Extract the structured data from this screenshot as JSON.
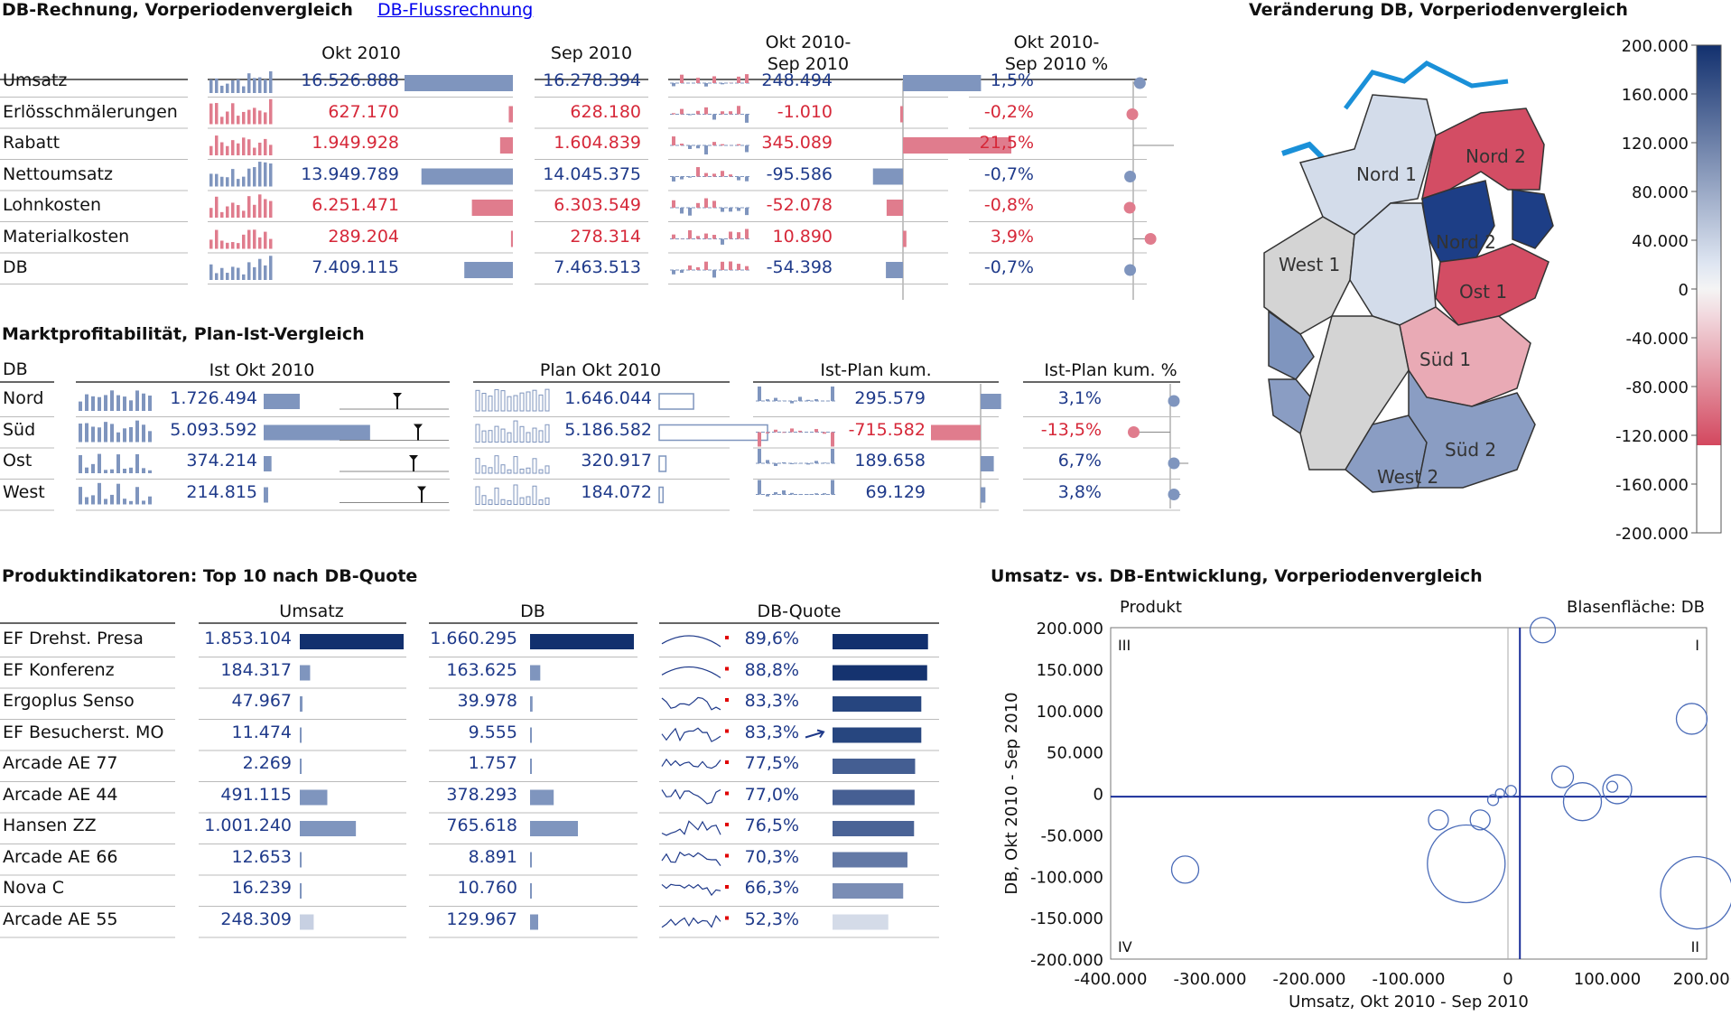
{
  "colors": {
    "blue": "#7f95be",
    "red": "#e07c8d",
    "navy": "#12306e",
    "textblue": "#1f3a8a",
    "textred": "#d62839",
    "map_pos": "#1c3f85",
    "map_neg": "#d13f58"
  },
  "db_rechnung": {
    "title": "DB-Rechnung, Vorperiodenvergleich",
    "link": "DB-Flussrechnung",
    "col_okt": "Okt 2010",
    "col_sep": "Sep 2010",
    "col_diff_1": "Okt 2010-",
    "col_diff_2": "Sep 2010",
    "col_pct_1": "Okt 2010-",
    "col_pct_2": "Sep 2010 %",
    "rows": [
      {
        "label": "Umsatz",
        "okt": "16.526.888",
        "sep": "16.278.394",
        "diff": "248.494",
        "pct": "1,5%",
        "neg": false,
        "okt_v": 16526888,
        "diff_v": 248494,
        "pct_v": 1.5
      },
      {
        "label": "Erlösschmälerungen",
        "okt": "627.170",
        "sep": "628.180",
        "diff": "-1.010",
        "pct": "-0,2%",
        "neg": true,
        "okt_v": 627170,
        "diff_v": -1010,
        "pct_v": -0.2
      },
      {
        "label": "Rabatt",
        "okt": "1.949.928",
        "sep": "1.604.839",
        "diff": "345.089",
        "pct": "21,5%",
        "neg": true,
        "okt_v": 1949928,
        "diff_v": 345089,
        "pct_v": 21.5
      },
      {
        "label": "Nettoumsatz",
        "okt": "13.949.789",
        "sep": "14.045.375",
        "diff": "-95.586",
        "pct": "-0,7%",
        "neg": false,
        "okt_v": 13949789,
        "diff_v": -95586,
        "pct_v": -0.7
      },
      {
        "label": "Lohnkosten",
        "okt": "6.251.471",
        "sep": "6.303.549",
        "diff": "-52.078",
        "pct": "-0,8%",
        "neg": true,
        "okt_v": 6251471,
        "diff_v": -52078,
        "pct_v": -0.8
      },
      {
        "label": "Materialkosten",
        "okt": "289.204",
        "sep": "278.314",
        "diff": "10.890",
        "pct": "3,9%",
        "neg": true,
        "okt_v": 289204,
        "diff_v": 10890,
        "pct_v": 3.9
      },
      {
        "label": "DB",
        "okt": "7.409.115",
        "sep": "7.463.513",
        "diff": "-54.398",
        "pct": "-0,7%",
        "neg": false,
        "okt_v": 7409115,
        "diff_v": -54398,
        "pct_v": -0.7
      }
    ]
  },
  "markt": {
    "title": "Marktprofitabilität, Plan-Ist-Vergleich",
    "col_db": "DB",
    "col_ist": "Ist Okt 2010",
    "col_plan": "Plan Okt 2010",
    "col_diff": "Ist-Plan kum.",
    "col_pct": "Ist-Plan kum. %",
    "rows": [
      {
        "label": "Nord",
        "ist": "1.726.494",
        "plan": "1.646.044",
        "diff": "295.579",
        "pct": "3,1%",
        "ist_v": 1726494,
        "plan_v": 1646044,
        "diff_v": 295579,
        "pct_v": 3.1
      },
      {
        "label": "Süd",
        "ist": "5.093.592",
        "plan": "5.186.582",
        "diff": "-715.582",
        "pct": "-13,5%",
        "ist_v": 5093592,
        "plan_v": 5186582,
        "diff_v": -715582,
        "pct_v": -13.5
      },
      {
        "label": "Ost",
        "ist": "374.214",
        "plan": "320.917",
        "diff": "189.658",
        "pct": "6,7%",
        "ist_v": 374214,
        "plan_v": 320917,
        "diff_v": 189658,
        "pct_v": 6.7
      },
      {
        "label": "West",
        "ist": "214.815",
        "plan": "184.072",
        "diff": "69.129",
        "pct": "3,8%",
        "ist_v": 214815,
        "plan_v": 184072,
        "diff_v": 69129,
        "pct_v": 3.8
      }
    ]
  },
  "produkt": {
    "title": "Produktindikatoren: Top 10 nach DB-Quote",
    "col_umsatz": "Umsatz",
    "col_db": "DB",
    "col_quote": "DB-Quote",
    "rows": [
      {
        "label": "EF Drehst. Presa",
        "umsatz": "1.853.104",
        "db": "1.660.295",
        "quote": "89,6%",
        "u_v": 1853104,
        "d_v": 1660295,
        "q_v": 89.6
      },
      {
        "label": "EF Konferenz",
        "umsatz": "184.317",
        "db": "163.625",
        "quote": "88,8%",
        "u_v": 184317,
        "d_v": 163625,
        "q_v": 88.8
      },
      {
        "label": "Ergoplus Senso",
        "umsatz": "47.967",
        "db": "39.978",
        "quote": "83,3%",
        "u_v": 47967,
        "d_v": 39978,
        "q_v": 83.3
      },
      {
        "label": "EF Besucherst. MO",
        "umsatz": "11.474",
        "db": "9.555",
        "quote": "83,3%",
        "u_v": 11474,
        "d_v": 9555,
        "q_v": 83.3
      },
      {
        "label": "Arcade AE 77",
        "umsatz": "2.269",
        "db": "1.757",
        "quote": "77,5%",
        "u_v": 2269,
        "d_v": 1757,
        "q_v": 77.5
      },
      {
        "label": "Arcade AE 44",
        "umsatz": "491.115",
        "db": "378.293",
        "quote": "77,0%",
        "u_v": 491115,
        "d_v": 378293,
        "q_v": 77.0
      },
      {
        "label": "Hansen ZZ",
        "umsatz": "1.001.240",
        "db": "765.618",
        "quote": "76,5%",
        "u_v": 1001240,
        "d_v": 765618,
        "q_v": 76.5
      },
      {
        "label": "Arcade AE 66",
        "umsatz": "12.653",
        "db": "8.891",
        "quote": "70,3%",
        "u_v": 12653,
        "d_v": 8891,
        "q_v": 70.3
      },
      {
        "label": "Nova C",
        "umsatz": "16.239",
        "db": "10.760",
        "quote": "66,3%",
        "u_v": 16239,
        "d_v": 10760,
        "q_v": 66.3
      },
      {
        "label": "Arcade AE 55",
        "umsatz": "248.309",
        "db": "129.967",
        "quote": "52,3%",
        "u_v": 248309,
        "d_v": 129967,
        "q_v": 52.3
      }
    ]
  },
  "karte": {
    "title": "Veränderung DB, Vorperiodenvergleich",
    "regions": [
      {
        "label": "Nord 1"
      },
      {
        "label": "Nord 2"
      },
      {
        "label": "West 1"
      },
      {
        "label": "Ost 1"
      },
      {
        "label": "Süd 1"
      },
      {
        "label": "Süd 2"
      },
      {
        "label": "West 2"
      },
      {
        "label": "Nord 2"
      }
    ],
    "legend_ticks": [
      "200.000",
      "160.000",
      "120.000",
      "80.000",
      "40.000",
      "0",
      "-40.000",
      "-80.000",
      "-120.000",
      "-160.000",
      "-200.000"
    ]
  },
  "blasen": {
    "title": "Umsatz- vs. DB-Entwicklung, Vorperiodenvergleich",
    "produkt_label": "Produkt",
    "flaeche_label": "Blasenfläche:  DB",
    "q1": "I",
    "q2": "II",
    "q3": "III",
    "q4": "IV",
    "ylabel": "DB, Okt 2010 - Sep 2010",
    "xlabel": "Umsatz, Okt 2010 - Sep 2010",
    "y_ticks": [
      "200.000",
      "150.000",
      "100.000",
      "50.000",
      "0",
      "-50.000",
      "-100.000",
      "-150.000",
      "-200.000"
    ],
    "x_ticks": [
      "-400.000",
      "-300.000",
      "-200.000",
      "-100.000",
      "0",
      "100.000",
      "200.000"
    ]
  },
  "chart_data": [
    {
      "type": "bar",
      "title": "DB-Rechnung, Vorperiodenvergleich",
      "categories": [
        "Umsatz",
        "Erlösschmälerungen",
        "Rabatt",
        "Nettoumsatz",
        "Lohnkosten",
        "Materialkosten",
        "DB"
      ],
      "series": [
        {
          "name": "Okt 2010",
          "values": [
            16526888,
            627170,
            1949928,
            13949789,
            6251471,
            289204,
            7409115
          ]
        },
        {
          "name": "Sep 2010",
          "values": [
            16278394,
            628180,
            1604839,
            14045375,
            6303549,
            278314,
            7463513
          ]
        },
        {
          "name": "Okt 2010-Sep 2010",
          "values": [
            248494,
            -1010,
            345089,
            -95586,
            -52078,
            10890,
            -54398
          ]
        },
        {
          "name": "Okt 2010-Sep 2010 %",
          "values": [
            1.5,
            -0.2,
            21.5,
            -0.7,
            -0.8,
            3.9,
            -0.7
          ]
        }
      ]
    },
    {
      "type": "bar",
      "title": "Marktprofitabilität, Plan-Ist-Vergleich",
      "categories": [
        "Nord",
        "Süd",
        "Ost",
        "West"
      ],
      "series": [
        {
          "name": "Ist Okt 2010",
          "values": [
            1726494,
            5093592,
            374214,
            214815
          ]
        },
        {
          "name": "Plan Okt 2010",
          "values": [
            1646044,
            5186582,
            320917,
            184072
          ]
        },
        {
          "name": "Ist-Plan kum.",
          "values": [
            295579,
            -715582,
            189658,
            69129
          ]
        },
        {
          "name": "Ist-Plan kum. %",
          "values": [
            3.1,
            -13.5,
            6.7,
            3.8
          ]
        }
      ]
    },
    {
      "type": "bar",
      "title": "Produktindikatoren: Top 10 nach DB-Quote",
      "categories": [
        "EF Drehst. Presa",
        "EF Konferenz",
        "Ergoplus Senso",
        "EF Besucherst. MO",
        "Arcade AE 77",
        "Arcade AE 44",
        "Hansen ZZ",
        "Arcade AE 66",
        "Nova C",
        "Arcade AE 55"
      ],
      "series": [
        {
          "name": "Umsatz",
          "values": [
            1853104,
            184317,
            47967,
            11474,
            2269,
            491115,
            1001240,
            12653,
            16239,
            248309
          ]
        },
        {
          "name": "DB",
          "values": [
            1660295,
            163625,
            39978,
            9555,
            1757,
            378293,
            765618,
            8891,
            10760,
            129967
          ]
        },
        {
          "name": "DB-Quote",
          "values": [
            89.6,
            88.8,
            83.3,
            83.3,
            77.5,
            77.0,
            76.5,
            70.3,
            66.3,
            52.3
          ]
        }
      ]
    },
    {
      "type": "scatter",
      "title": "Umsatz- vs. DB-Entwicklung, Vorperiodenvergleich",
      "xlabel": "Umsatz, Okt 2010 - Sep 2010",
      "ylabel": "DB, Okt 2010 - Sep 2010",
      "xlim": [
        -400000,
        200000
      ],
      "ylim": [
        -200000,
        200000
      ],
      "points": [
        {
          "x": 35000,
          "y": 197000,
          "r": 14
        },
        {
          "x": 185000,
          "y": 90000,
          "r": 17
        },
        {
          "x": 55000,
          "y": 20000,
          "r": 12
        },
        {
          "x": 75000,
          "y": -10000,
          "r": 21
        },
        {
          "x": 110000,
          "y": 5000,
          "r": 16
        },
        {
          "x": -70000,
          "y": -32000,
          "r": 11
        },
        {
          "x": -28000,
          "y": -32000,
          "r": 11
        },
        {
          "x": -42000,
          "y": -85000,
          "r": 43
        },
        {
          "x": -325000,
          "y": -92000,
          "r": 15
        },
        {
          "x": 190000,
          "y": -120000,
          "r": 40
        },
        {
          "x": -15000,
          "y": -8000,
          "r": 6
        },
        {
          "x": -8000,
          "y": 0,
          "r": 5
        },
        {
          "x": 3000,
          "y": 3000,
          "r": 6
        },
        {
          "x": 105000,
          "y": 8000,
          "r": 6
        }
      ]
    },
    {
      "type": "heatmap",
      "title": "Veränderung DB, Vorperiodenvergleich",
      "ylim": [
        -200000,
        200000
      ]
    }
  ]
}
